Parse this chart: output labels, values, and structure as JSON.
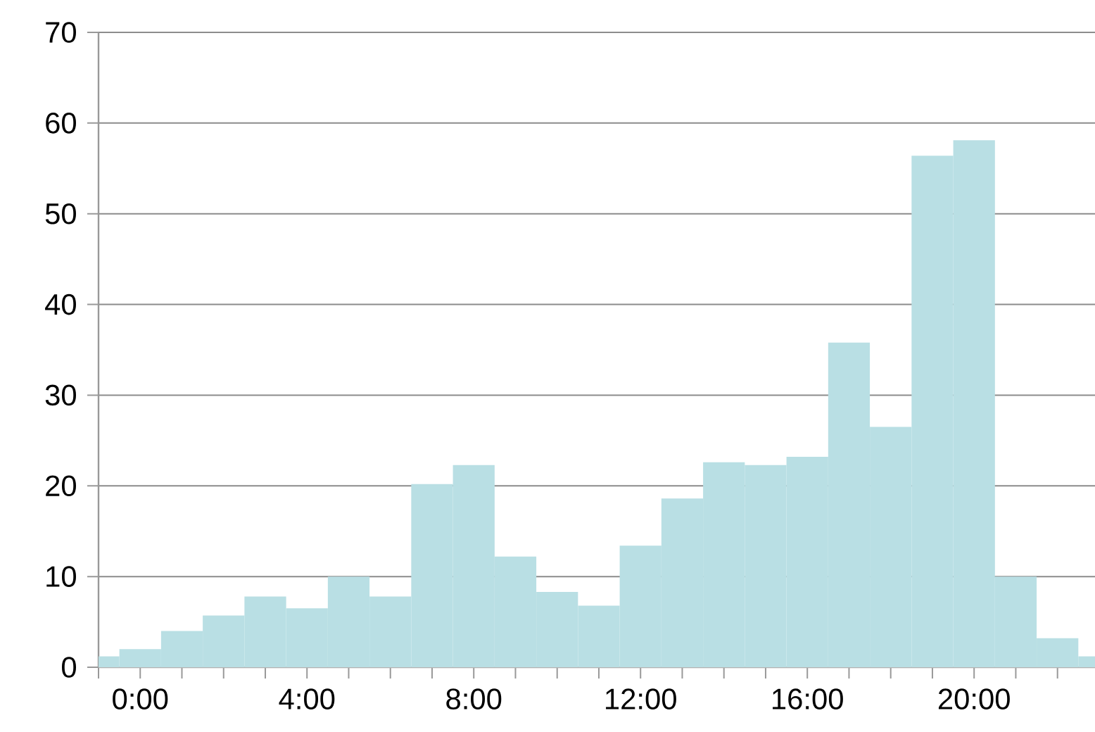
{
  "chart_data": {
    "type": "histogram",
    "color": "#b9dfe4",
    "bins": [
      -1,
      -0.5,
      0.5,
      1.5,
      2.5,
      3.5,
      4.5,
      5.5,
      6.5,
      7.5,
      8.5,
      9.5,
      10.5,
      11.5,
      12.5,
      13.5,
      14.5,
      15.5,
      16.5,
      17.5,
      18.5,
      19.5,
      20.5,
      21.5,
      22.5,
      22.9
    ],
    "values": [
      1.2,
      2,
      4,
      5.7,
      7.8,
      6.5,
      10,
      7.8,
      20.2,
      22.3,
      12.2,
      8.3,
      6.8,
      13.4,
      18.6,
      22.6,
      22.3,
      23.2,
      35.8,
      26.5,
      56.4,
      58.1,
      10,
      3.2,
      1.2
    ],
    "xlim": [
      -1,
      22.9
    ],
    "ylim": [
      0,
      70
    ],
    "xticks": [
      {
        "value": -1,
        "label": null
      },
      {
        "value": 0,
        "label": "0:00"
      },
      {
        "value": 1,
        "label": null
      },
      {
        "value": 2,
        "label": null
      },
      {
        "value": 3,
        "label": null
      },
      {
        "value": 4,
        "label": "4:00"
      },
      {
        "value": 5,
        "label": null
      },
      {
        "value": 6,
        "label": null
      },
      {
        "value": 7,
        "label": null
      },
      {
        "value": 8,
        "label": "8:00"
      },
      {
        "value": 9,
        "label": null
      },
      {
        "value": 10,
        "label": null
      },
      {
        "value": 11,
        "label": null
      },
      {
        "value": 12,
        "label": "12:00"
      },
      {
        "value": 13,
        "label": null
      },
      {
        "value": 14,
        "label": null
      },
      {
        "value": 15,
        "label": null
      },
      {
        "value": 16,
        "label": "16:00"
      },
      {
        "value": 17,
        "label": null
      },
      {
        "value": 18,
        "label": null
      },
      {
        "value": 19,
        "label": null
      },
      {
        "value": 20,
        "label": "20:00"
      },
      {
        "value": 21,
        "label": null
      },
      {
        "value": 22,
        "label": null
      }
    ],
    "yticks": [
      0,
      10,
      20,
      30,
      40,
      50,
      60,
      70
    ],
    "grid": "y"
  }
}
